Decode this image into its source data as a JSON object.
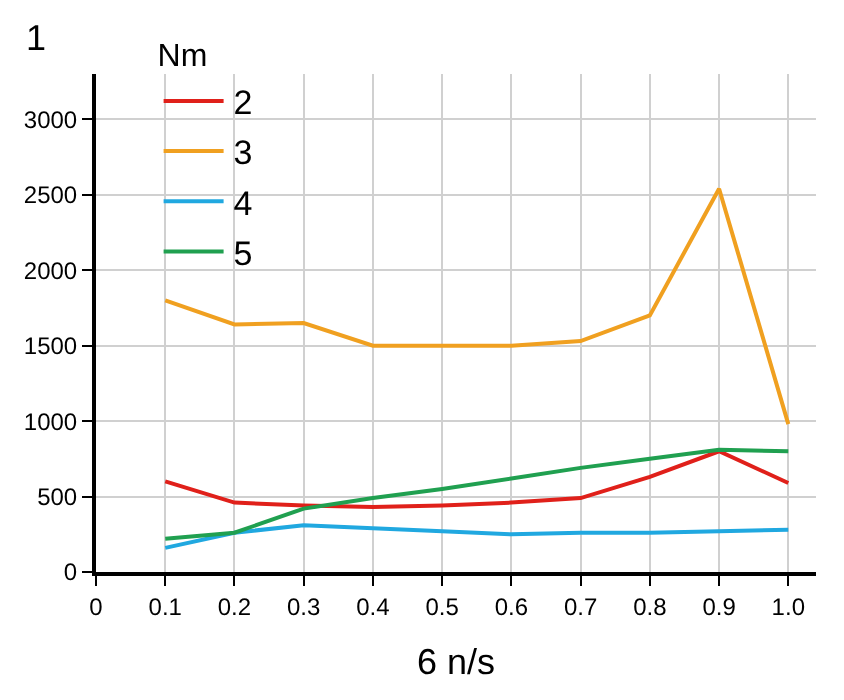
{
  "chart_data": {
    "type": "line",
    "ylabel": "1",
    "legend_title": "Nm",
    "xlabel": "6 n/s",
    "x": [
      0.1,
      0.2,
      0.3,
      0.4,
      0.5,
      0.6,
      0.7,
      0.8,
      0.9,
      1.0
    ],
    "series": [
      {
        "name": "2",
        "color": "#e0201a",
        "values": [
          600,
          460,
          440,
          430,
          440,
          460,
          490,
          630,
          800,
          590
        ]
      },
      {
        "name": "3",
        "color": "#f0a020",
        "values": [
          1800,
          1640,
          1650,
          1500,
          1500,
          1500,
          1530,
          1700,
          2540,
          980
        ]
      },
      {
        "name": "4",
        "color": "#20a8e0",
        "values": [
          160,
          260,
          310,
          290,
          270,
          250,
          260,
          260,
          270,
          280
        ]
      },
      {
        "name": "5",
        "color": "#20a050",
        "values": [
          220,
          260,
          420,
          490,
          550,
          620,
          690,
          750,
          810,
          800
        ]
      }
    ],
    "xlim": [
      0,
      1.04
    ],
    "xticks": [
      0,
      0.1,
      0.2,
      0.3,
      0.4,
      0.5,
      0.6,
      0.7,
      0.8,
      0.9,
      {
        "value": 1.0,
        "label": "1.0"
      }
    ],
    "ylim": [
      0,
      3300
    ],
    "yticks": [
      0,
      500,
      1000,
      1500,
      2000,
      2500,
      3000
    ],
    "grid": true,
    "legend": "top left",
    "marker": "none",
    "line_style": "solid"
  }
}
